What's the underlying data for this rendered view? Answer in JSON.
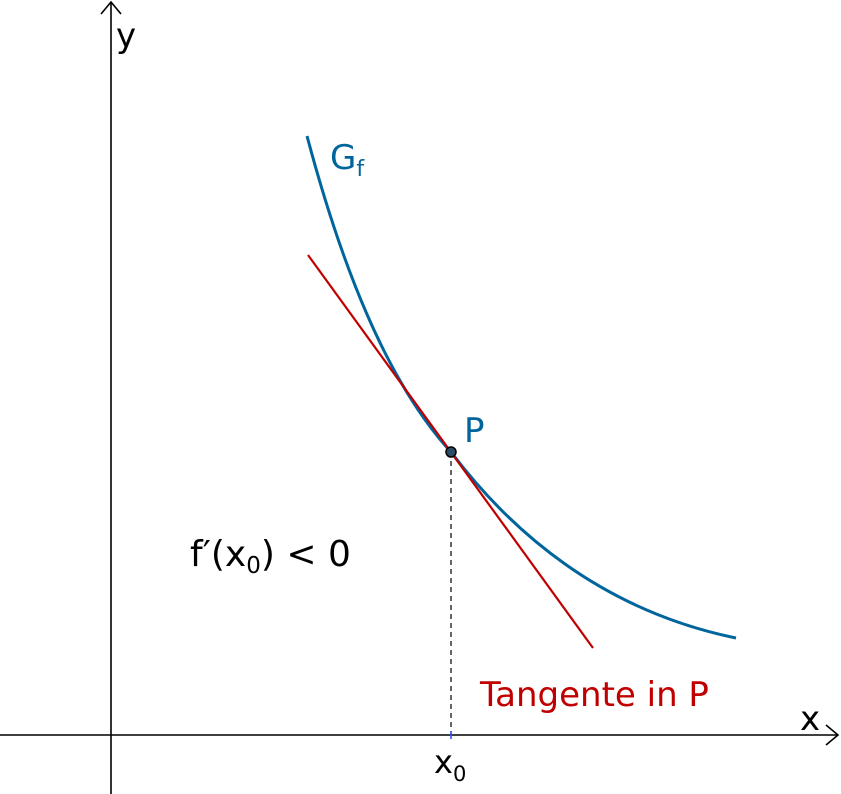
{
  "axes": {
    "x_label": "x",
    "y_label": "y"
  },
  "curve": {
    "label_main": "G",
    "label_sub": "f",
    "color": "#00659c"
  },
  "point": {
    "label": "P",
    "x_tick_main": "x",
    "x_tick_sub": "0"
  },
  "tangent": {
    "label": "Tangente in P",
    "color": "#c00000"
  },
  "annotation": {
    "prefix": "f",
    "prime": "′",
    "paren_open": "(",
    "var_main": "x",
    "var_sub": "0",
    "rest": ") < 0"
  }
}
